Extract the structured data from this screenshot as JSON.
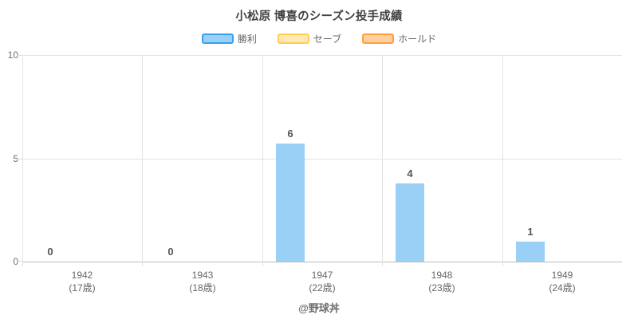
{
  "title": "小松原 博喜のシーズン投手成績",
  "footer": "@野球丼",
  "legend": [
    {
      "label": "勝利",
      "fill": "#9AD0F5",
      "border": "#36A2EB"
    },
    {
      "label": "セーブ",
      "fill": "#FFE8B5",
      "border": "#FFCD56"
    },
    {
      "label": "ホールド",
      "fill": "#FFCF9F",
      "border": "#FF9F40"
    }
  ],
  "chart_data": {
    "type": "bar",
    "categories": [
      "1942",
      "1943",
      "1947",
      "1948",
      "1949"
    ],
    "category_sublabels": [
      "(17歳)",
      "(18歳)",
      "(22歳)",
      "(23歳)",
      "(24歳)"
    ],
    "series": [
      {
        "name": "勝利",
        "values": [
          0,
          0,
          6,
          4,
          1
        ],
        "fill": "#9AD0F5",
        "border": "#36A2EB"
      },
      {
        "name": "セーブ",
        "values": [
          0,
          0,
          0,
          0,
          0
        ],
        "fill": "#FFE8B5",
        "border": "#FFCD56"
      },
      {
        "name": "ホールド",
        "values": [
          0,
          0,
          0,
          0,
          0
        ],
        "fill": "#FFCF9F",
        "border": "#FF9F40"
      }
    ],
    "data_labels": [
      0,
      0,
      6,
      4,
      1
    ],
    "yticks": [
      0,
      5,
      10
    ],
    "ylim": [
      0,
      10
    ],
    "grid": true,
    "legend_position": "top",
    "title": "小松原 博喜のシーズン投手成績"
  }
}
